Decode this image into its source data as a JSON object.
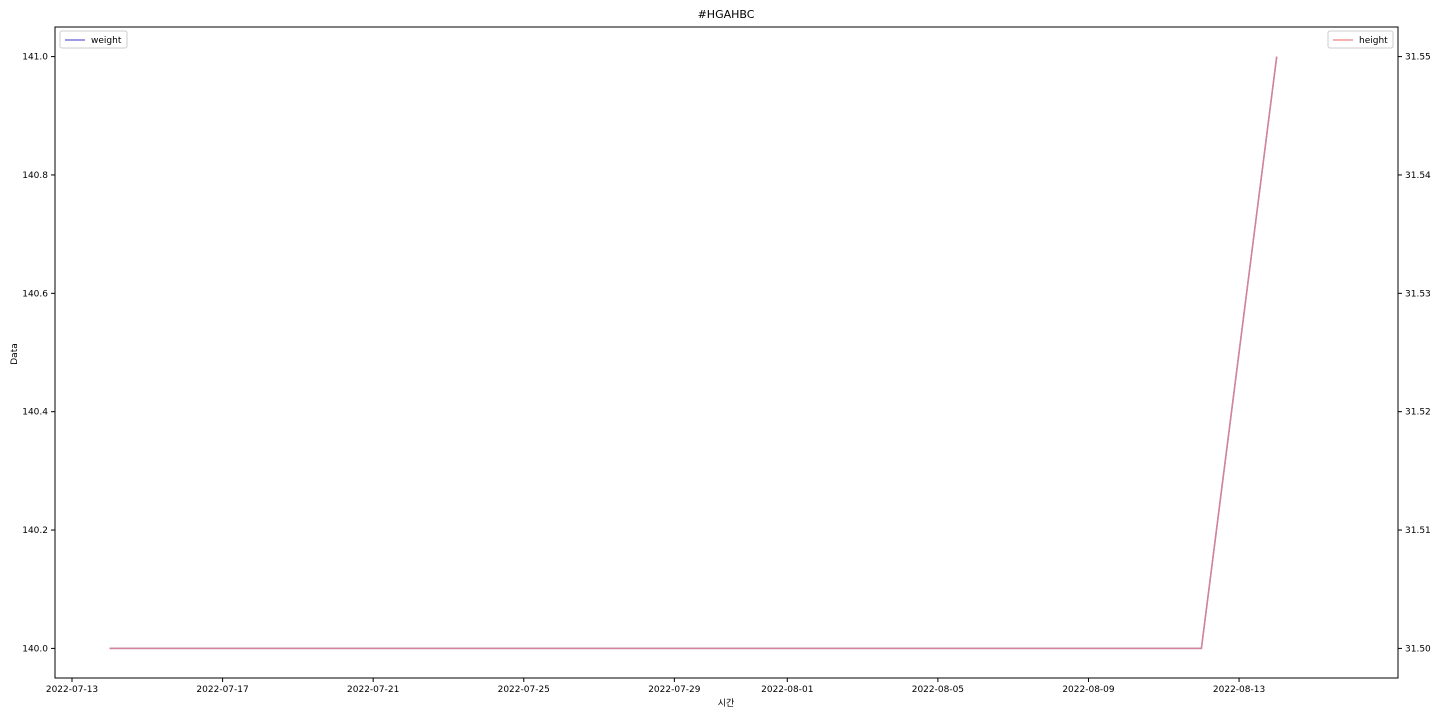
{
  "chart_data": {
    "type": "line",
    "title": "#HGAHBC",
    "xlabel": "시간",
    "ylabel": "Data",
    "x_ticks": [
      "2022-07-13",
      "2022-07-17",
      "2022-07-21",
      "2022-07-25",
      "2022-07-29",
      "2022-08-01",
      "2022-08-05",
      "2022-08-09",
      "2022-08-13"
    ],
    "xlim": [
      "2022-07-13",
      "2022-08-16"
    ],
    "left_axis": {
      "ylim": [
        139.95,
        141.05
      ],
      "ticks": [
        "140.0",
        "140.2",
        "140.4",
        "140.6",
        "140.8",
        "141.0"
      ]
    },
    "right_axis": {
      "ylim": [
        31.4975,
        31.5525
      ],
      "ticks": [
        "31.50",
        "31.51",
        "31.52",
        "31.53",
        "31.54",
        "31.55"
      ]
    },
    "series": [
      {
        "name": "weight",
        "axis": "left",
        "color": "#5b5bd6",
        "x": [
          "2022-07-14",
          "2022-08-12",
          "2022-08-14"
        ],
        "y": [
          140.0,
          140.0,
          141.0
        ]
      },
      {
        "name": "height",
        "axis": "right",
        "color": "#f08080",
        "x": [
          "2022-07-14",
          "2022-08-12",
          "2022-08-14"
        ],
        "y": [
          31.5,
          31.5,
          31.55
        ]
      }
    ],
    "legend": {
      "left_placement": "top-left",
      "right_placement": "top-right"
    },
    "grid": false
  }
}
